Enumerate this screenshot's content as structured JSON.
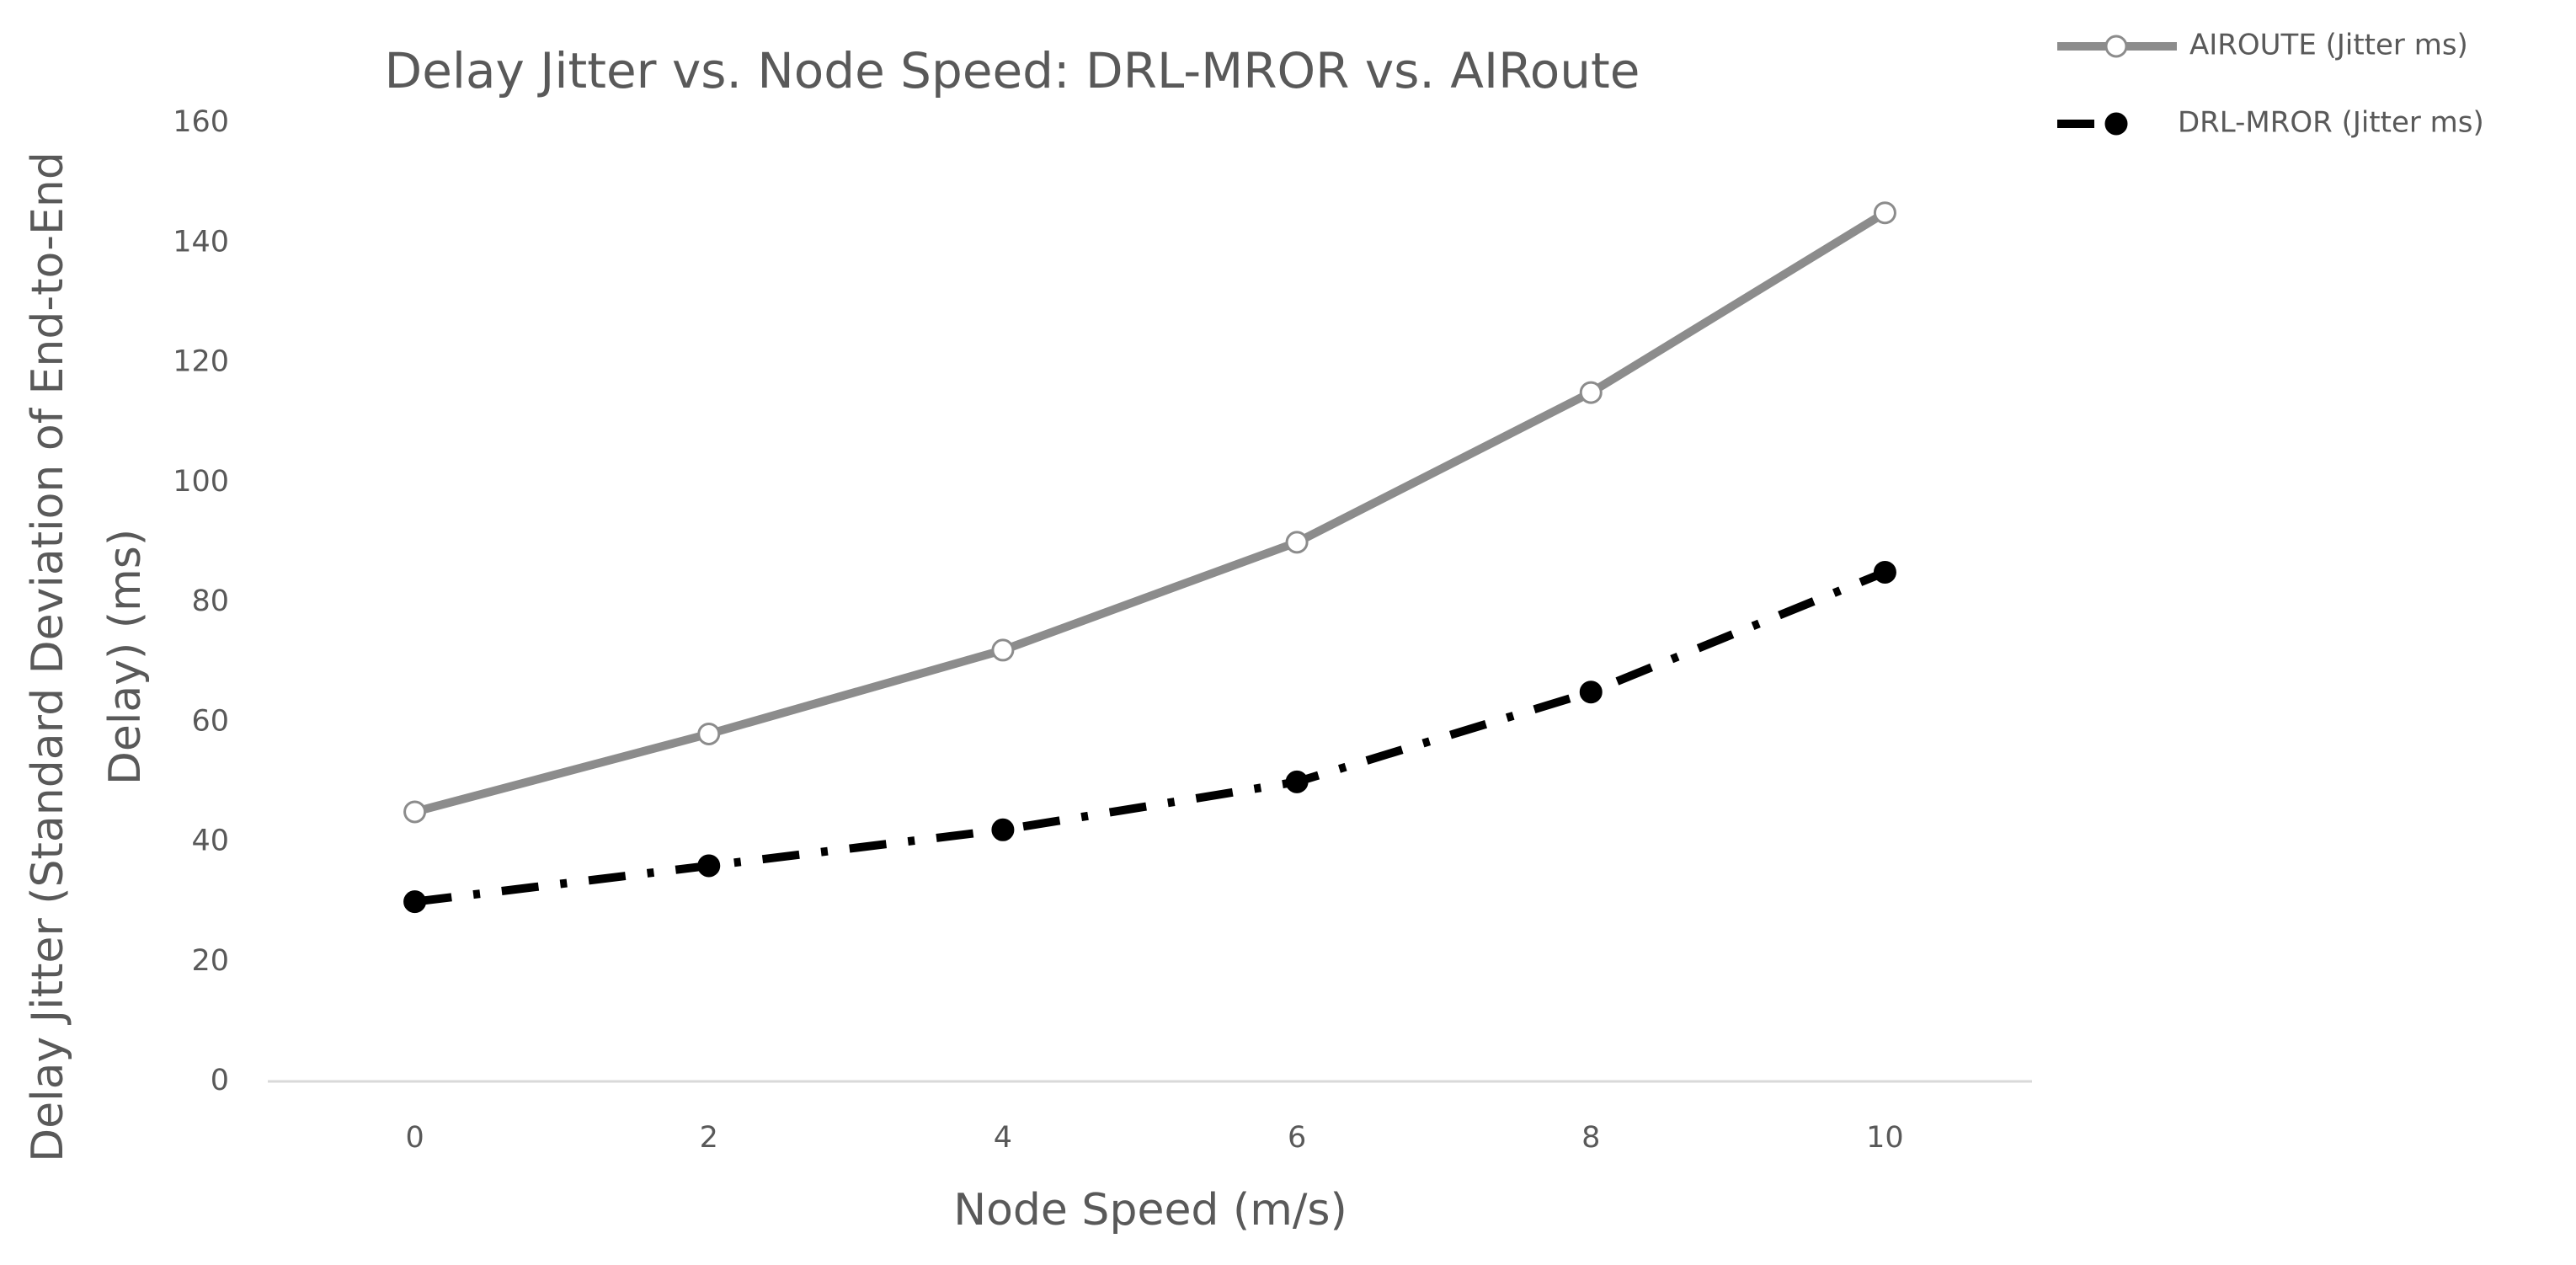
{
  "chart_data": {
    "type": "line",
    "title": "Delay Jitter vs. Node Speed: DRL-MROR vs. AIRoute",
    "x_label": "Node Speed (m/s)",
    "y_label": [
      "Delay Jitter (Standard Deviation of End-to-End",
      "Delay) (ms)"
    ],
    "categories": [
      "0",
      "2",
      "4",
      "6",
      "8",
      "10"
    ],
    "series": [
      {
        "name": "AIROUTE (Jitter ms)",
        "color": "#8c8c8c",
        "dash": "solid",
        "marker_fill": "#ffffff",
        "values": [
          45,
          58,
          72,
          90,
          115,
          145
        ]
      },
      {
        "name": "DRL-MROR (Jitter ms)",
        "color": "#000000",
        "dash": "dashdot",
        "marker_fill": "#000000",
        "values": [
          30,
          36,
          42,
          50,
          65,
          85
        ]
      }
    ],
    "ylim": [
      0,
      160
    ],
    "yticks": [
      0,
      20,
      40,
      60,
      80,
      100,
      120,
      140,
      160
    ],
    "grid": false,
    "legend": "top-right"
  }
}
